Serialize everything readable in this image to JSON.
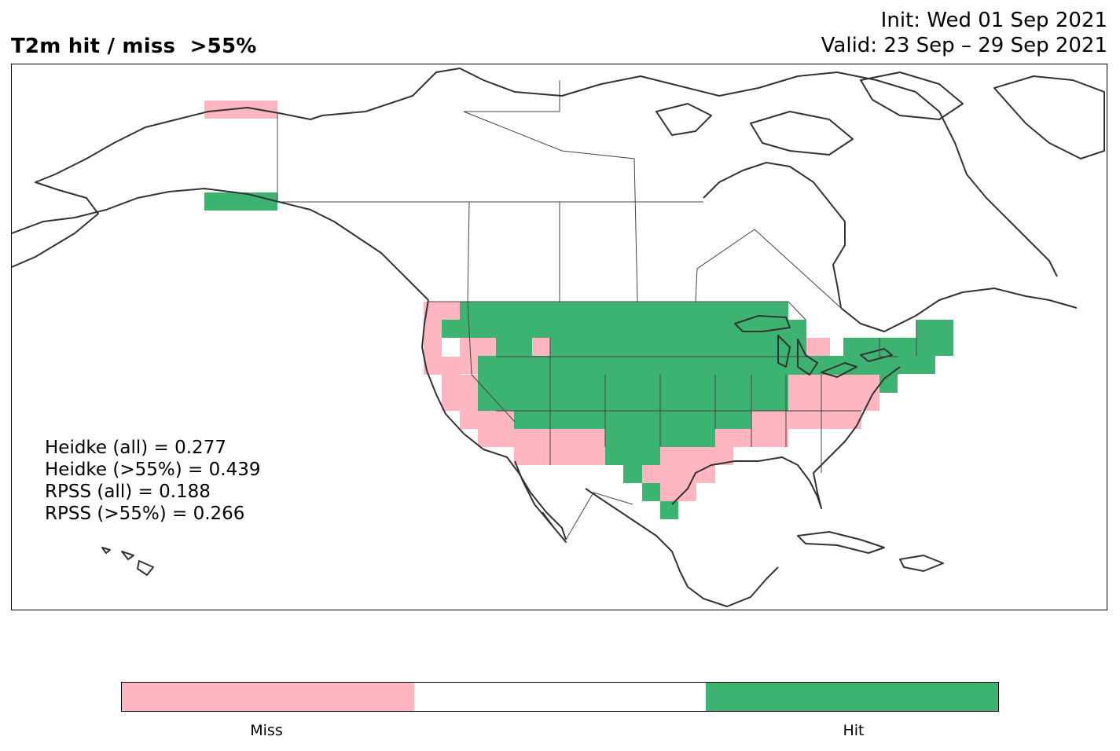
{
  "header": {
    "title": "T2m hit / miss  >55%",
    "init": "Init: Wed 01 Sep 2021",
    "valid": "Valid: 23 Sep – 29 Sep 2021"
  },
  "stats": {
    "heidke_all": "Heidke (all) = 0.277",
    "heidke_55": "Heidke (>55%) = 0.439",
    "rpss_all": "RPSS (all) = 0.188",
    "rpss_55": "RPSS (>55%) = 0.266"
  },
  "colors": {
    "miss": "#ffb6c1",
    "neutral": "#ffffff",
    "hit": "#3cb371",
    "coast": "#333333"
  },
  "legend": {
    "miss_label": "Miss",
    "hit_label": "Hit"
  }
}
